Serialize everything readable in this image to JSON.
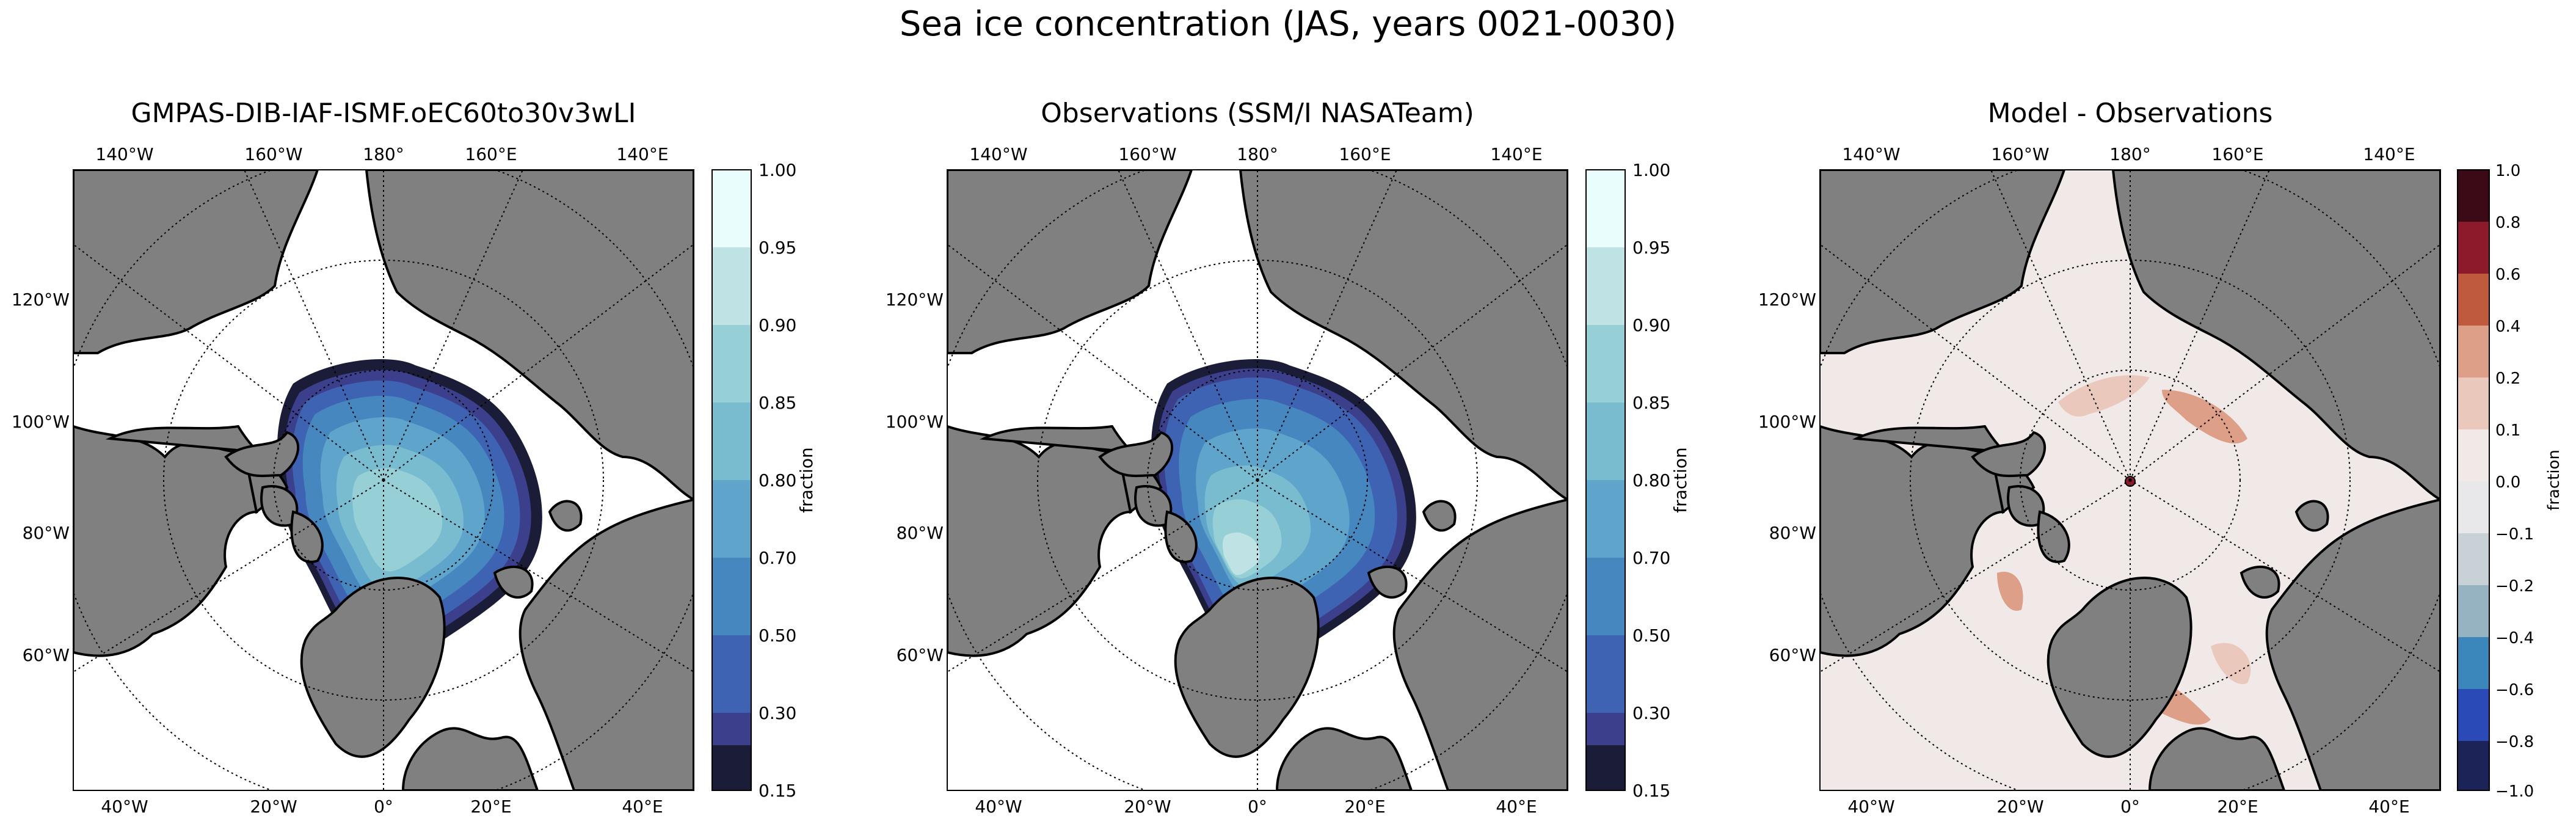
{
  "figure": {
    "title": "Sea ice concentration (JAS, years 0021-0030)"
  },
  "colors": {
    "land": "#808080",
    "ocean": "#ffffff",
    "coastline": "#000000",
    "diff_background": "#f0e9e8"
  },
  "panels": [
    {
      "title": "GMPAS-DIB-IAF-ISMF.oEC60to30v3wLI",
      "top_labels": [
        "140°W",
        "160°W",
        "180°",
        "160°E",
        "140°E"
      ],
      "left_labels": [
        "120°W",
        "100°W",
        "80°W",
        "60°W"
      ],
      "bottom_labels": [
        "40°W",
        "20°W",
        "0°",
        "20°E",
        "40°E"
      ],
      "colorbar": {
        "label": "fraction",
        "ticks": [
          "1.00",
          "0.95",
          "0.90",
          "0.85",
          "0.80",
          "0.70",
          "0.50",
          "0.30",
          "0.15"
        ],
        "colors_top_to_bottom": [
          "#eafdfd",
          "#bfe3e4",
          "#96d0d6",
          "#79bcd0",
          "#5ea4cb",
          "#4687c0",
          "#3f63b3",
          "#3b3f8c",
          "#1a1c38"
        ]
      },
      "ice_fill": [
        "#1a1c38",
        "#3b3f8c",
        "#3f63b3",
        "#4687c0",
        "#5ea4cb",
        "#79bcd0",
        "#96d0d6",
        "#bfe3e4"
      ]
    },
    {
      "title": "Observations (SSM/I NASATeam)",
      "top_labels": [
        "140°W",
        "160°W",
        "180°",
        "160°E",
        "140°E"
      ],
      "left_labels": [
        "120°W",
        "100°W",
        "80°W",
        "60°W"
      ],
      "bottom_labels": [
        "40°W",
        "20°W",
        "0°",
        "20°E",
        "40°E"
      ],
      "colorbar": {
        "label": "fraction",
        "ticks": [
          "1.00",
          "0.95",
          "0.90",
          "0.85",
          "0.80",
          "0.70",
          "0.50",
          "0.30",
          "0.15"
        ],
        "colors_top_to_bottom": [
          "#eafdfd",
          "#bfe3e4",
          "#96d0d6",
          "#79bcd0",
          "#5ea4cb",
          "#4687c0",
          "#3f63b3",
          "#3b3f8c",
          "#1a1c38"
        ]
      },
      "ice_fill": [
        "#1a1c38",
        "#3b3f8c",
        "#3f63b3",
        "#4687c0",
        "#5ea4cb",
        "#79bcd0",
        "#96d0d6",
        "#bfe3e4"
      ]
    },
    {
      "title": "Model - Observations",
      "top_labels": [
        "140°W",
        "160°W",
        "180°",
        "160°E",
        "140°E"
      ],
      "left_labels": [
        "120°W",
        "100°W",
        "80°W",
        "60°W"
      ],
      "bottom_labels": [
        "40°W",
        "20°W",
        "0°",
        "20°E",
        "40°E"
      ],
      "colorbar": {
        "label": "fraction",
        "ticks": [
          "1.0",
          "0.8",
          "0.6",
          "0.4",
          "0.2",
          "0.1",
          "0.0",
          "−0.1",
          "−0.2",
          "−0.4",
          "−0.6",
          "−0.8",
          "−1.0"
        ],
        "colors_top_to_bottom": [
          "#3c0a16",
          "#8c1a2b",
          "#c05a3c",
          "#dd9f88",
          "#ebc8bc",
          "#f0e9e8",
          "#e8e8ea",
          "#c7d1d6",
          "#95b3c0",
          "#3b87bc",
          "#2a4bb7",
          "#1c2356"
        ]
      },
      "ice_fill": [
        "#f0e9e8"
      ]
    }
  ]
}
